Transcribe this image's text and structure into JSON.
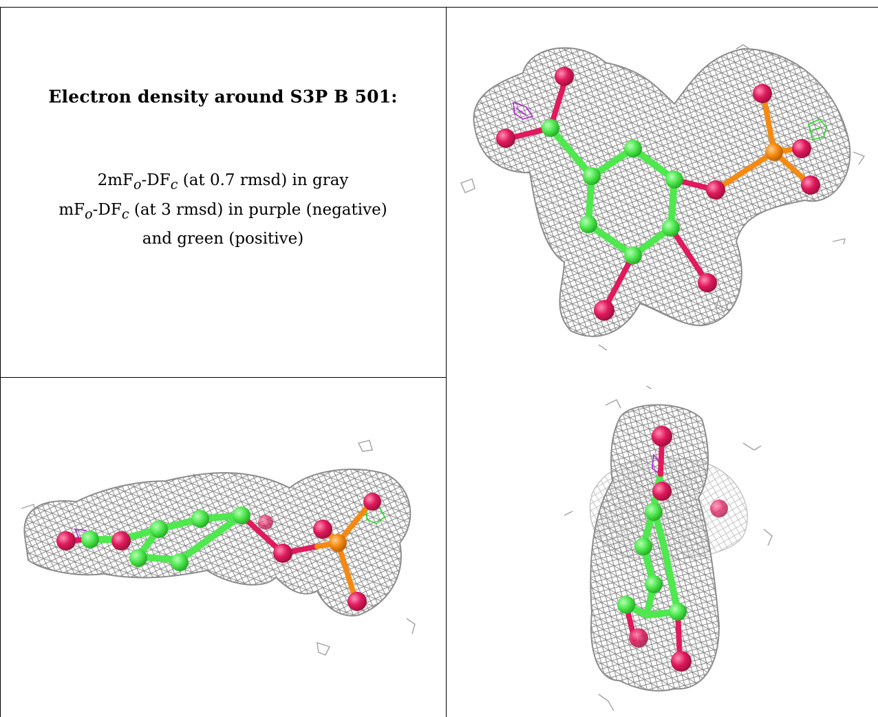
{
  "caption": {
    "title": "Electron density around S3P B 501:",
    "line1": {
      "a": "2mF",
      "sub1": "o",
      "b": "-DF",
      "sub2": "c",
      "c": " (at 0.7 rmsd) in gray"
    },
    "line2": {
      "a": "mF",
      "sub1": "o",
      "b": "-DF",
      "sub2": "c",
      "c": " (at 3 rmsd) in purple (negative)"
    },
    "line3": "and green (positive)"
  },
  "colors": {
    "mesh_2fofc": "#8c8c8c",
    "mesh_neg": "#b522d8",
    "mesh_pos": "#22d822",
    "carbon": "#4fe84f",
    "oxygen": "#e01a5c",
    "phosphorus": "#f58a12"
  },
  "panels": [
    {
      "name": "view-top-right",
      "icon": "ligand-density-front-view"
    },
    {
      "name": "view-bottom-left",
      "icon": "ligand-density-side-view"
    },
    {
      "name": "view-bottom-right",
      "icon": "ligand-density-edge-view"
    }
  ]
}
